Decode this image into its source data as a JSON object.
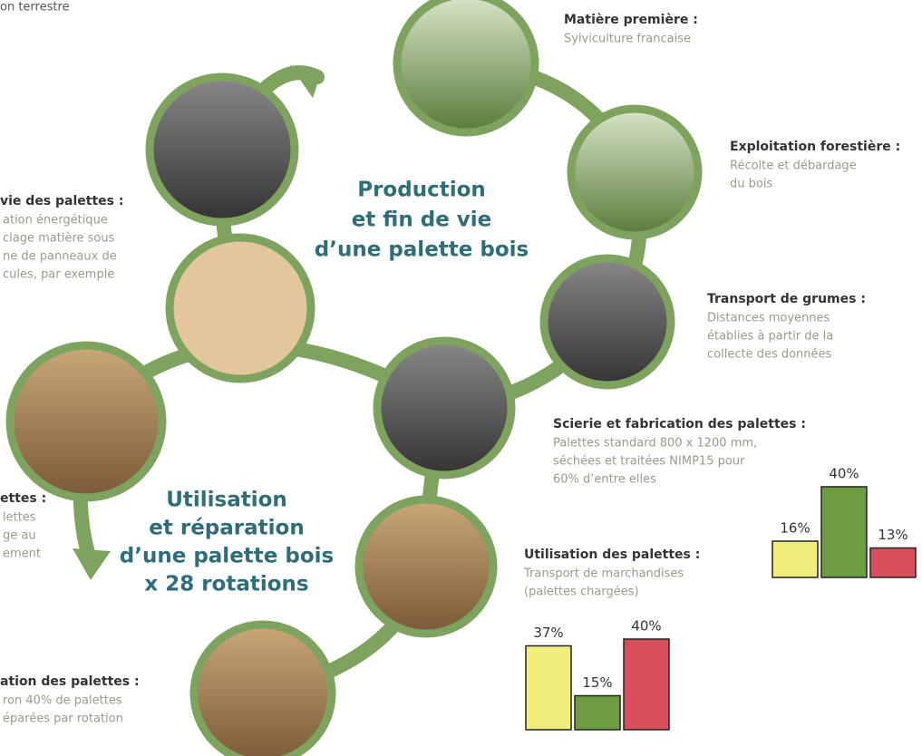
{
  "header": {
    "fragment": "on terrestre"
  },
  "cycles": [
    {
      "lines": [
        "Production",
        "et fin de vie",
        "d’une palette bois"
      ]
    },
    {
      "lines": [
        "Utilisation",
        "et réparation",
        "d’une palette bois",
        "x 28 rotations"
      ]
    }
  ],
  "steps": [
    {
      "title": "Matière première :",
      "lines": [
        "Sylviculture francaise"
      ]
    },
    {
      "title": "Exploitation forestière :",
      "lines": [
        "Récolte et débardage",
        "du bois"
      ]
    },
    {
      "title": "Transport de grumes :",
      "lines": [
        "Distances moyennes",
        "établies à partir de la",
        "collecte des données"
      ]
    },
    {
      "title": "Scierie et fabrication des palettes :",
      "lines": [
        "Palettes standard 800 x 1200 mm,",
        "séchées et traitées NIMP15 pour",
        "60% d’entre elles"
      ]
    },
    {
      "title": "Utilisation des palettes :",
      "lines": [
        "Transport de marchandises",
        "(palettes chargées)"
      ]
    },
    {
      "title": "vie des palettes :",
      "lines": [
        "ation énergétique",
        "clage matière sous",
        "ne de panneaux de",
        "cules, par exemple"
      ]
    },
    {
      "title": "ettes :",
      "lines": [
        "lettes",
        "ge au",
        "ement"
      ]
    },
    {
      "title": "ation des palettes :",
      "lines": [
        "ron 40% de palettes",
        "éparées par rotation"
      ]
    }
  ],
  "bar_groups": [
    {
      "values": [
        16,
        40,
        13
      ],
      "value_labels": [
        "16%",
        "40%",
        "13%"
      ],
      "colors": [
        "#f1ee7c",
        "#6e9c42",
        "#d84f5c"
      ]
    },
    {
      "values": [
        37,
        15,
        40
      ],
      "value_labels": [
        "37%",
        "15%",
        "40%"
      ],
      "colors": [
        "#f1ee7c",
        "#6e9c42",
        "#d84f5c"
      ]
    }
  ]
}
